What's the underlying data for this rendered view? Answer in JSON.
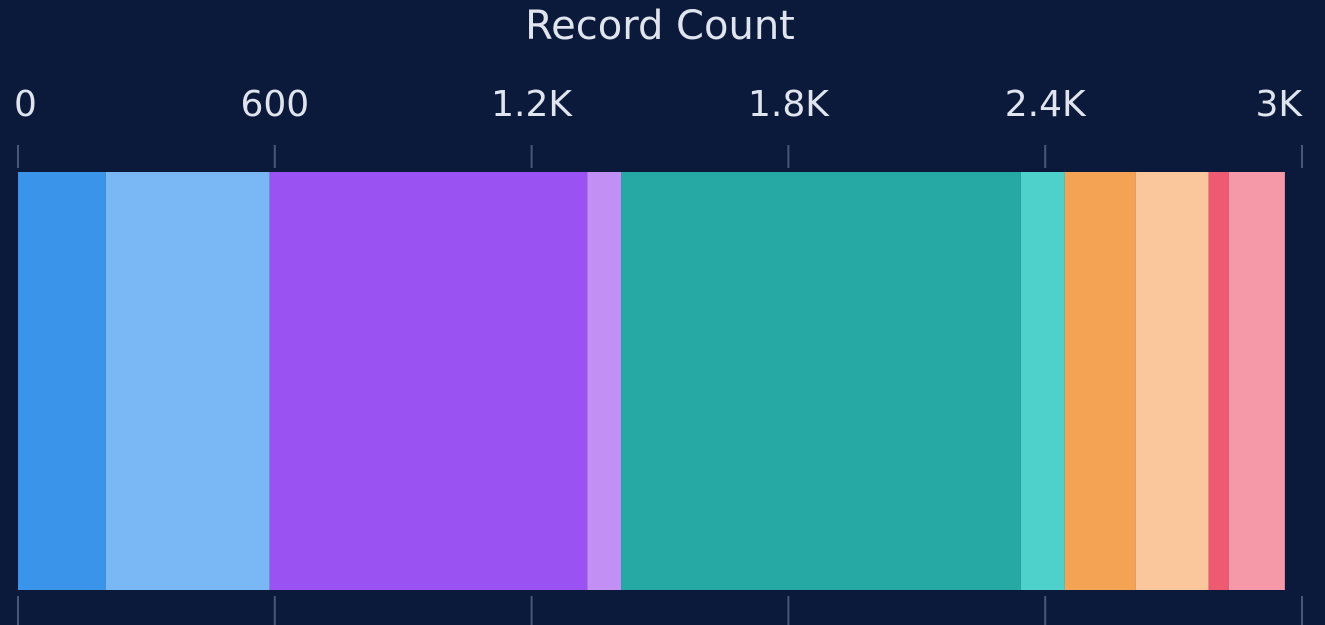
{
  "chart_data": {
    "type": "bar",
    "orientation": "horizontal",
    "stacked": true,
    "title": "Record Count",
    "categories": [
      null
    ],
    "series": [
      {
        "color": "#3a95ea",
        "values": [
          205
        ]
      },
      {
        "color": "#7ab8f5",
        "values": [
          383
        ]
      },
      {
        "color": "#9b52f2",
        "values": [
          742
        ]
      },
      {
        "color": "#c290f4",
        "values": [
          79
        ]
      },
      {
        "color": "#26a9a4",
        "values": [
          934
        ]
      },
      {
        "color": "#4fd1cb",
        "values": [
          103
        ]
      },
      {
        "color": "#f4a354",
        "values": [
          166
        ]
      },
      {
        "color": "#f9c79b",
        "values": [
          170
        ]
      },
      {
        "color": "#ef5a73",
        "values": [
          47
        ]
      },
      {
        "color": "#f598a8",
        "values": [
          131
        ]
      }
    ],
    "xlim": [
      0,
      3000
    ],
    "xticks": [
      0,
      600,
      {
        "value": 1200,
        "label": "1.2K"
      },
      {
        "value": 1800,
        "label": "1.8K"
      },
      {
        "value": 2400,
        "label": "2.4K"
      },
      {
        "value": 3000,
        "label": "3K"
      }
    ],
    "grid": true
  }
}
